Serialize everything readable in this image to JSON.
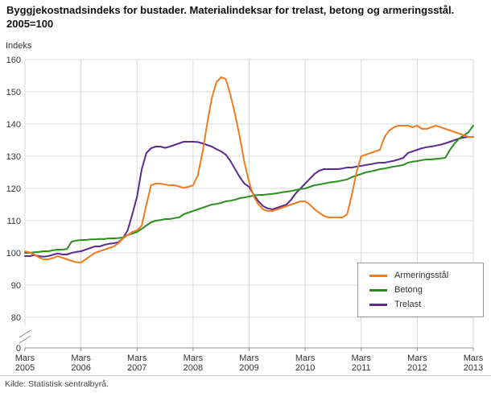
{
  "title": "Byggjekostnadsindeks for bustader. Materialindeksar for trelast, betong og armeringsstål. 2005=100",
  "y_axis_label": "Indeks",
  "source": "Kilde: Statistisk sentralbyrå.",
  "colors": {
    "grid": "#d9d9d9",
    "axis": "#8c8c8c",
    "text": "#333333",
    "armeringsstal": "#ef7d22",
    "betong": "#2f8e22",
    "trelast": "#5c2d91"
  },
  "chart_data": {
    "type": "line",
    "title": "Byggjekostnadsindeks for bustader. Materialindeksar for trelast, betong og armeringsstål. 2005=100",
    "ylabel": "Indeks",
    "ylim": [
      80,
      160
    ],
    "y_ticks": [
      0,
      80,
      90,
      100,
      110,
      120,
      130,
      140,
      150,
      160
    ],
    "y_axis_break": true,
    "grid": true,
    "frequency": "monthly",
    "legend_position": "inside-lower-right",
    "x_ticks": [
      {
        "month_index": 0,
        "line1": "Mars",
        "line2": "2005"
      },
      {
        "month_index": 12,
        "line1": "Mars",
        "line2": "2006"
      },
      {
        "month_index": 24,
        "line1": "Mars",
        "line2": "2007"
      },
      {
        "month_index": 36,
        "line1": "Mars",
        "line2": "2008"
      },
      {
        "month_index": 48,
        "line1": "Mars",
        "line2": "2009"
      },
      {
        "month_index": 60,
        "line1": "Mars",
        "line2": "2010"
      },
      {
        "month_index": 72,
        "line1": "Mars",
        "line2": "2011"
      },
      {
        "month_index": 84,
        "line1": "Mars",
        "line2": "2012"
      },
      {
        "month_index": 96,
        "line1": "Mars",
        "line2": "2013"
      }
    ],
    "series": [
      {
        "name": "Armeringsstål",
        "color": "#ef7d22",
        "values": [
          100.5,
          100.1,
          99.5,
          98.6,
          98,
          98,
          98.4,
          99,
          98.5,
          98,
          97.5,
          97.1,
          97,
          98,
          99,
          100,
          100.5,
          101,
          101.5,
          102,
          103,
          104.5,
          105.5,
          106.5,
          107,
          108.5,
          115,
          121,
          121.5,
          121.5,
          121.2,
          121,
          121,
          120.6,
          120.2,
          120.5,
          121,
          124,
          131,
          140,
          148,
          153,
          154.5,
          154,
          149,
          143,
          136,
          128,
          122,
          117.5,
          115,
          113.5,
          113,
          113,
          113.5,
          114,
          114.5,
          115,
          115.5,
          116,
          116,
          115,
          113.5,
          112.5,
          111.5,
          111,
          111,
          111,
          111,
          112,
          118,
          125,
          130,
          130.5,
          131,
          131.5,
          132,
          136,
          138,
          139,
          139.5,
          139.5,
          139.5,
          139,
          139.5,
          138.5,
          138.5,
          139,
          139.5,
          139,
          138.5,
          138,
          137.5,
          137,
          136.5,
          136,
          136
        ]
      },
      {
        "name": "Betong",
        "color": "#2f8e22",
        "values": [
          100,
          100,
          100.2,
          100.3,
          100.5,
          100.5,
          100.8,
          101,
          101,
          101.2,
          103.5,
          103.8,
          104,
          104,
          104.2,
          104.2,
          104.3,
          104.3,
          104.5,
          104.5,
          104.6,
          104.8,
          105.5,
          106,
          106.5,
          107.5,
          108.5,
          109.5,
          110,
          110.2,
          110.5,
          110.5,
          110.8,
          111,
          112,
          112.5,
          113,
          113.5,
          114,
          114.5,
          115,
          115.2,
          115.5,
          116,
          116.2,
          116.5,
          117,
          117.2,
          117.5,
          117.8,
          118,
          118,
          118.2,
          118.3,
          118.5,
          118.8,
          119,
          119.2,
          119.5,
          119.8,
          120,
          120.5,
          121,
          121.2,
          121.5,
          121.8,
          122,
          122.2,
          122.5,
          122.8,
          123.5,
          124,
          124.5,
          125,
          125.3,
          125.6,
          126,
          126.2,
          126.5,
          126.8,
          127,
          127.3,
          128,
          128.3,
          128.5,
          128.8,
          129,
          129,
          129.2,
          129.3,
          129.5,
          132,
          134,
          135.5,
          136.5,
          137.5,
          139.5
        ]
      },
      {
        "name": "Trelast",
        "color": "#5c2d91",
        "values": [
          99,
          99,
          99.3,
          99,
          98.8,
          99,
          99.4,
          99.8,
          99.5,
          99.5,
          100,
          100.3,
          100.5,
          101,
          101.5,
          102,
          102,
          102.5,
          102.8,
          103,
          103.3,
          104.5,
          107,
          112,
          117.5,
          126,
          131,
          132.5,
          133,
          133,
          132.6,
          133,
          133.5,
          134,
          134.5,
          134.5,
          134.5,
          134.4,
          134,
          133.5,
          133,
          132.2,
          131.5,
          130.5,
          128.5,
          126,
          123.5,
          121.5,
          120.5,
          118,
          116,
          114.5,
          113.8,
          113.5,
          114,
          114.5,
          115,
          116.5,
          118.5,
          120,
          121.5,
          123,
          124.5,
          125.5,
          126,
          126,
          126,
          126,
          126.2,
          126.5,
          126.5,
          126.8,
          127,
          127.3,
          127.5,
          127.8,
          128,
          128,
          128.3,
          128.6,
          129,
          129.5,
          131,
          131.5,
          132,
          132.5,
          132.8,
          133,
          133.3,
          133.6,
          134,
          134.5,
          135,
          135.5,
          135.8,
          136,
          136
        ]
      }
    ],
    "legend": [
      "Armeringsstål",
      "Betong",
      "Trelast"
    ]
  }
}
